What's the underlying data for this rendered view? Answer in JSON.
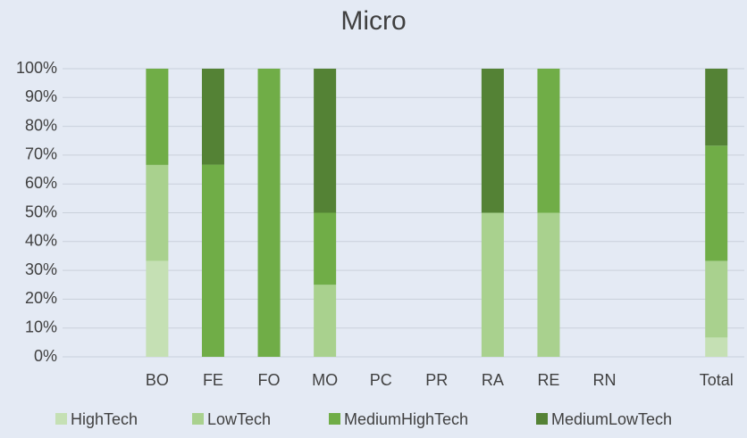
{
  "chart_data": {
    "type": "bar",
    "stacked": true,
    "title": "Micro",
    "categories": [
      null,
      "BO",
      "FE",
      "FO",
      "MO",
      "PC",
      "PR",
      "RA",
      "RE",
      "RN",
      null,
      "Total"
    ],
    "series": [
      {
        "name": "HighTech",
        "color": "#c5e0b4",
        "values": [
          null,
          33.3,
          0,
          0,
          0,
          0,
          0,
          0,
          0,
          0,
          null,
          6.7
        ]
      },
      {
        "name": "LowTech",
        "color": "#a9d18e",
        "values": [
          null,
          33.3,
          0,
          0,
          25,
          0,
          0,
          50,
          50,
          0,
          null,
          26.6
        ]
      },
      {
        "name": "MediumHighTech",
        "color": "#70ad47",
        "values": [
          null,
          33.4,
          66.7,
          100,
          25,
          0,
          0,
          0,
          50,
          0,
          null,
          40
        ]
      },
      {
        "name": "MediumLowTech",
        "color": "#548235",
        "values": [
          null,
          0,
          33.3,
          0,
          50,
          0,
          0,
          50,
          0,
          0,
          null,
          26.7
        ]
      }
    ],
    "ylim": [
      0,
      100
    ],
    "yticks": [
      {
        "value": 0,
        "label": "0%"
      },
      {
        "value": 10,
        "label": "10%"
      },
      {
        "value": 20,
        "label": "20%"
      },
      {
        "value": 30,
        "label": "30%"
      },
      {
        "value": 40,
        "label": "40%"
      },
      {
        "value": 50,
        "label": "50%"
      },
      {
        "value": 60,
        "label": "60%"
      },
      {
        "value": 70,
        "label": "70%"
      },
      {
        "value": 80,
        "label": "80%"
      },
      {
        "value": 90,
        "label": "90%"
      },
      {
        "value": 100,
        "label": "100%"
      }
    ],
    "grid": true,
    "legend": "bottom"
  }
}
